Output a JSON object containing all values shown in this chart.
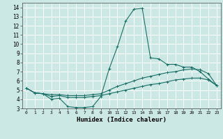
{
  "xlabel": "Humidex (Indice chaleur)",
  "background_color": "#cce8e4",
  "grid_color": "#ffffff",
  "line_color": "#1a6e65",
  "xlim": [
    -0.5,
    23.5
  ],
  "ylim": [
    3.0,
    14.5
  ],
  "yticks": [
    3,
    4,
    5,
    6,
    7,
    8,
    9,
    10,
    11,
    12,
    13,
    14
  ],
  "xticks": [
    0,
    1,
    2,
    3,
    4,
    5,
    6,
    7,
    8,
    9,
    10,
    11,
    12,
    13,
    14,
    15,
    16,
    17,
    18,
    19,
    20,
    21,
    22,
    23
  ],
  "line1_x": [
    0,
    1,
    2,
    3,
    4,
    5,
    6,
    7,
    8,
    9,
    10,
    11,
    12,
    13,
    14,
    15,
    16,
    17,
    18,
    19,
    20,
    21,
    22,
    23
  ],
  "line1_y": [
    5.2,
    4.7,
    4.6,
    4.0,
    4.1,
    3.2,
    3.1,
    3.1,
    3.2,
    4.3,
    7.3,
    9.7,
    12.5,
    13.8,
    13.9,
    8.5,
    8.4,
    7.8,
    7.8,
    7.5,
    7.5,
    7.0,
    6.2,
    5.5
  ],
  "line2_x": [
    0,
    1,
    2,
    3,
    4,
    5,
    6,
    7,
    8,
    9,
    10,
    11,
    12,
    13,
    14,
    15,
    16,
    17,
    18,
    19,
    20,
    21,
    22,
    23
  ],
  "line2_y": [
    5.2,
    4.7,
    4.6,
    4.5,
    4.5,
    4.4,
    4.4,
    4.4,
    4.5,
    4.6,
    5.0,
    5.4,
    5.7,
    6.0,
    6.3,
    6.5,
    6.7,
    6.9,
    7.0,
    7.2,
    7.3,
    7.2,
    6.8,
    5.5
  ],
  "line3_x": [
    0,
    1,
    2,
    3,
    4,
    5,
    6,
    7,
    8,
    9,
    10,
    11,
    12,
    13,
    14,
    15,
    16,
    17,
    18,
    19,
    20,
    21,
    22,
    23
  ],
  "line3_y": [
    5.2,
    4.7,
    4.6,
    4.3,
    4.4,
    4.2,
    4.2,
    4.2,
    4.3,
    4.4,
    4.6,
    4.8,
    5.0,
    5.2,
    5.4,
    5.6,
    5.7,
    5.9,
    6.1,
    6.2,
    6.3,
    6.3,
    6.1,
    5.5
  ]
}
